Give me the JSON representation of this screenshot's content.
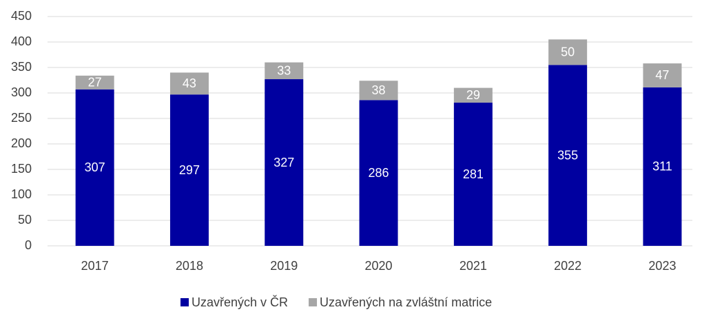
{
  "chart_data": {
    "type": "stacked_bar",
    "categories": [
      "2017",
      "2018",
      "2019",
      "2020",
      "2021",
      "2022",
      "2023"
    ],
    "series": [
      {
        "name": "Uzavřených v ČR",
        "color": "#0000a0",
        "values": [
          307,
          297,
          327,
          286,
          281,
          355,
          311
        ]
      },
      {
        "name": "Uzavřených na zvláštní matrice",
        "color": "#a6a6a6",
        "values": [
          27,
          43,
          33,
          38,
          29,
          50,
          47
        ]
      }
    ],
    "ylim": [
      0,
      450
    ],
    "yticks": [
      0,
      50,
      100,
      150,
      200,
      250,
      300,
      350,
      400,
      450
    ],
    "grid": true,
    "legend": "bottom"
  }
}
